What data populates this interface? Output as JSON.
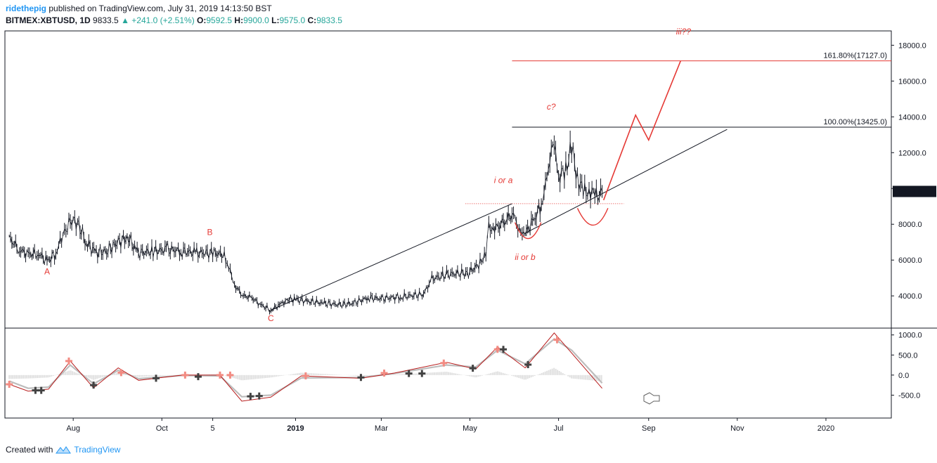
{
  "header": {
    "author": "ridethepig",
    "published": "published on TradingView.com, July 31, 2019 14:13:50 BST",
    "symbol": "BITMEX:XBTUSD, 1D",
    "last": "9833.5",
    "change": "▲ +241.0 (+2.51%)",
    "o_label": "O:",
    "o_value": "9592.5",
    "h_label": "H:",
    "h_value": "9900.0",
    "l_label": "L:",
    "l_value": "9575.0",
    "c_label": "C:",
    "c_value": "9833.5"
  },
  "footer": {
    "created": "Created with",
    "brand": "TradingView"
  },
  "colors": {
    "annotation": "#e53935",
    "candle": "#131722",
    "macd": "#b71c1c",
    "signal": "#bdbdbd",
    "cross_up": "#f28b82",
    "cross_down": "#424242",
    "up": "#26a69a"
  },
  "chart_data": {
    "type": "line",
    "title": "BITMEX:XBTUSD, 1D",
    "price_scale": {
      "ylim": [
        2200,
        18800
      ],
      "ticks": [
        4000,
        6000,
        8000,
        10000,
        12000,
        14000,
        16000,
        18000
      ],
      "labels": [
        "4000.0",
        "6000.0",
        "8000.0",
        "10000.0",
        "12000.0",
        "14000.0",
        "16000.0",
        "18000.0"
      ]
    },
    "x_axis": {
      "labels": [
        "Aug",
        "Oct",
        "5",
        "2019",
        "Mar",
        "May",
        "Jul",
        "Sep",
        "Nov",
        "2020"
      ],
      "bold": [
        "2019"
      ]
    },
    "last_price": {
      "value": 9833.5,
      "label": "9833.5"
    },
    "price_series": [
      {
        "t": "2018-06-18",
        "v": 7200
      },
      {
        "t": "2018-06-25",
        "v": 6600
      },
      {
        "t": "2018-07-01",
        "v": 6300
      },
      {
        "t": "2018-07-08",
        "v": 6400
      },
      {
        "t": "2018-07-14",
        "v": 5900
      },
      {
        "t": "2018-07-20",
        "v": 6400
      },
      {
        "t": "2018-07-25",
        "v": 7400
      },
      {
        "t": "2018-07-30",
        "v": 8200
      },
      {
        "t": "2018-08-04",
        "v": 8100
      },
      {
        "t": "2018-08-10",
        "v": 7000
      },
      {
        "t": "2018-08-16",
        "v": 6400
      },
      {
        "t": "2018-08-24",
        "v": 6500
      },
      {
        "t": "2018-09-01",
        "v": 7000
      },
      {
        "t": "2018-09-08",
        "v": 7300
      },
      {
        "t": "2018-09-14",
        "v": 6400
      },
      {
        "t": "2018-09-25",
        "v": 6500
      },
      {
        "t": "2018-10-05",
        "v": 6600
      },
      {
        "t": "2018-10-15",
        "v": 6500
      },
      {
        "t": "2018-10-25",
        "v": 6400
      },
      {
        "t": "2018-11-05",
        "v": 6400
      },
      {
        "t": "2018-11-13",
        "v": 6300
      },
      {
        "t": "2018-11-16",
        "v": 5600
      },
      {
        "t": "2018-11-20",
        "v": 4600
      },
      {
        "t": "2018-11-26",
        "v": 4000
      },
      {
        "t": "2018-12-02",
        "v": 3900
      },
      {
        "t": "2018-12-08",
        "v": 3500
      },
      {
        "t": "2018-12-15",
        "v": 3200
      },
      {
        "t": "2018-12-21",
        "v": 3500
      },
      {
        "t": "2018-12-26",
        "v": 3800
      },
      {
        "t": "2019-01-01",
        "v": 3800
      },
      {
        "t": "2019-01-10",
        "v": 3700
      },
      {
        "t": "2019-01-20",
        "v": 3600
      },
      {
        "t": "2019-02-01",
        "v": 3500
      },
      {
        "t": "2019-02-10",
        "v": 3600
      },
      {
        "t": "2019-02-20",
        "v": 3900
      },
      {
        "t": "2019-03-01",
        "v": 3850
      },
      {
        "t": "2019-03-15",
        "v": 3950
      },
      {
        "t": "2019-03-31",
        "v": 4100
      },
      {
        "t": "2019-04-03",
        "v": 4900
      },
      {
        "t": "2019-04-15",
        "v": 5200
      },
      {
        "t": "2019-04-30",
        "v": 5300
      },
      {
        "t": "2019-05-08",
        "v": 5800
      },
      {
        "t": "2019-05-12",
        "v": 6500
      },
      {
        "t": "2019-05-14",
        "v": 7800
      },
      {
        "t": "2019-05-18",
        "v": 7800
      },
      {
        "t": "2019-05-24",
        "v": 8000
      },
      {
        "t": "2019-05-30",
        "v": 8700
      },
      {
        "t": "2019-06-04",
        "v": 7700
      },
      {
        "t": "2019-06-08",
        "v": 7500
      },
      {
        "t": "2019-06-14",
        "v": 8200
      },
      {
        "t": "2019-06-20",
        "v": 9300
      },
      {
        "t": "2019-06-23",
        "v": 10500
      },
      {
        "t": "2019-06-26",
        "v": 12500
      },
      {
        "t": "2019-06-29",
        "v": 11800
      },
      {
        "t": "2019-07-02",
        "v": 10600
      },
      {
        "t": "2019-07-06",
        "v": 11200
      },
      {
        "t": "2019-07-10",
        "v": 12200
      },
      {
        "t": "2019-07-14",
        "v": 10700
      },
      {
        "t": "2019-07-18",
        "v": 9700
      },
      {
        "t": "2019-07-22",
        "v": 10000
      },
      {
        "t": "2019-07-26",
        "v": 9500
      },
      {
        "t": "2019-07-31",
        "v": 9833.5
      }
    ],
    "levels": [
      {
        "value": 17127.0,
        "label": "161.80%(17127.0)",
        "color": "#e53935"
      },
      {
        "value": 13425.0,
        "label": "100.00%(13425.0)",
        "color": "#131722"
      },
      {
        "value": 9150,
        "label": "",
        "color": "#e53935",
        "dotted": true
      }
    ],
    "trendlines": [
      {
        "from": {
          "t": "2018-12-15",
          "v": 3200
        },
        "to": {
          "t": "2019-05-30",
          "v": 9150
        }
      },
      {
        "from": {
          "t": "2019-06-08",
          "v": 7500
        },
        "to": {
          "t": "2019-10-25",
          "v": 13300
        }
      }
    ],
    "projection": [
      {
        "t": "2019-08-01",
        "v": 9350
      },
      {
        "t": "2019-08-23",
        "v": 14100
      },
      {
        "t": "2019-09-01",
        "v": 12700
      },
      {
        "t": "2019-09-23",
        "v": 17127
      }
    ],
    "annotations": [
      {
        "text": "A",
        "t": "2018-07-14",
        "v": 5200,
        "italic": false
      },
      {
        "text": "B",
        "t": "2018-11-03",
        "v": 7400,
        "italic": false
      },
      {
        "text": "C",
        "t": "2018-12-15",
        "v": 2600,
        "italic": false
      },
      {
        "text": "i or a",
        "t": "2019-05-24",
        "v": 10300,
        "italic": true
      },
      {
        "text": "ii or b",
        "t": "2019-06-08",
        "v": 6000,
        "italic": true
      },
      {
        "text": "c?",
        "t": "2019-06-26",
        "v": 14400,
        "italic": true
      },
      {
        "text": "iii??",
        "t": "2019-09-25",
        "v": 18600,
        "italic": true
      }
    ],
    "oscillator": {
      "ylim": [
        -1000,
        1100
      ],
      "ticks": [
        1000,
        500,
        0,
        -500
      ],
      "labels": [
        "1000.0",
        "500.0",
        "0.0",
        "-500.0"
      ],
      "macd": [
        {
          "t": "2018-06-18",
          "v": -230
        },
        {
          "t": "2018-07-01",
          "v": -400
        },
        {
          "t": "2018-07-15",
          "v": -350
        },
        {
          "t": "2018-07-30",
          "v": 350
        },
        {
          "t": "2018-08-15",
          "v": -320
        },
        {
          "t": "2018-09-01",
          "v": 180
        },
        {
          "t": "2018-09-15",
          "v": -130
        },
        {
          "t": "2018-10-15",
          "v": 0
        },
        {
          "t": "2018-11-10",
          "v": 0
        },
        {
          "t": "2018-11-25",
          "v": -650
        },
        {
          "t": "2018-12-15",
          "v": -550
        },
        {
          "t": "2019-01-05",
          "v": -20
        },
        {
          "t": "2019-02-15",
          "v": -80
        },
        {
          "t": "2019-03-10",
          "v": 50
        },
        {
          "t": "2019-04-15",
          "v": 320
        },
        {
          "t": "2019-05-05",
          "v": 150
        },
        {
          "t": "2019-05-20",
          "v": 700
        },
        {
          "t": "2019-06-08",
          "v": 180
        },
        {
          "t": "2019-06-28",
          "v": 1050
        },
        {
          "t": "2019-07-10",
          "v": 550
        },
        {
          "t": "2019-07-31",
          "v": -330
        }
      ],
      "signal": [
        {
          "t": "2018-06-18",
          "v": -150
        },
        {
          "t": "2018-07-01",
          "v": -330
        },
        {
          "t": "2018-07-15",
          "v": -300
        },
        {
          "t": "2018-07-30",
          "v": 250
        },
        {
          "t": "2018-08-15",
          "v": -220
        },
        {
          "t": "2018-09-01",
          "v": 120
        },
        {
          "t": "2018-09-15",
          "v": -90
        },
        {
          "t": "2018-10-15",
          "v": -10
        },
        {
          "t": "2018-11-10",
          "v": -20
        },
        {
          "t": "2018-11-25",
          "v": -540
        },
        {
          "t": "2018-12-15",
          "v": -500
        },
        {
          "t": "2019-01-05",
          "v": -70
        },
        {
          "t": "2019-02-15",
          "v": -60
        },
        {
          "t": "2019-03-10",
          "v": 40
        },
        {
          "t": "2019-04-15",
          "v": 250
        },
        {
          "t": "2019-05-05",
          "v": 200
        },
        {
          "t": "2019-05-20",
          "v": 620
        },
        {
          "t": "2019-06-08",
          "v": 280
        },
        {
          "t": "2019-06-28",
          "v": 900
        },
        {
          "t": "2019-07-10",
          "v": 620
        },
        {
          "t": "2019-07-31",
          "v": -200
        }
      ],
      "crosses_up": [
        {
          "t": "2018-06-18",
          "v": -230
        },
        {
          "t": "2018-07-29",
          "v": 350
        },
        {
          "t": "2018-09-03",
          "v": 60
        },
        {
          "t": "2018-10-17",
          "v": 0
        },
        {
          "t": "2018-11-10",
          "v": 0
        },
        {
          "t": "2018-11-17",
          "v": 0
        },
        {
          "t": "2019-01-08",
          "v": -20
        },
        {
          "t": "2019-03-03",
          "v": 50
        },
        {
          "t": "2019-04-13",
          "v": 300
        },
        {
          "t": "2019-05-20",
          "v": 640
        },
        {
          "t": "2019-06-30",
          "v": 880
        }
      ],
      "crosses_down": [
        {
          "t": "2018-07-06",
          "v": -380
        },
        {
          "t": "2018-07-10",
          "v": -380
        },
        {
          "t": "2018-08-15",
          "v": -250
        },
        {
          "t": "2018-09-27",
          "v": -80
        },
        {
          "t": "2018-10-26",
          "v": -40
        },
        {
          "t": "2018-12-01",
          "v": -530
        },
        {
          "t": "2018-12-07",
          "v": -520
        },
        {
          "t": "2019-02-15",
          "v": -60
        },
        {
          "t": "2019-03-20",
          "v": 40
        },
        {
          "t": "2019-03-29",
          "v": 40
        },
        {
          "t": "2019-05-03",
          "v": 170
        },
        {
          "t": "2019-05-24",
          "v": 640
        },
        {
          "t": "2019-06-10",
          "v": 260
        }
      ]
    }
  }
}
